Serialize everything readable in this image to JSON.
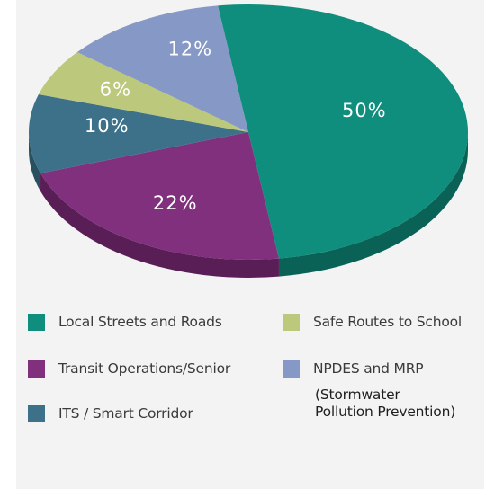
{
  "chart_data": {
    "type": "pie",
    "title": "",
    "labels_format": "percent",
    "slices": [
      {
        "label": "Local Streets and Roads",
        "value": 50,
        "display": "50%",
        "color": "#0f8d7d",
        "side": "#0a6257"
      },
      {
        "label": "Transit Operations/Senior",
        "value": 22,
        "display": "22%",
        "color": "#80307c",
        "side": "#5a1e57"
      },
      {
        "label": "ITS / Smart Corridor",
        "value": 10,
        "display": "10%",
        "color": "#3c7189",
        "side": "#29505f"
      },
      {
        "label": "Safe Routes to School",
        "value": 6,
        "display": "6%",
        "color": "#bcc87c",
        "side": "#8b9459"
      },
      {
        "label": "NPDES and MRP",
        "value": 12,
        "display": "12%",
        "color": "#8598c6",
        "side": "#5f6d92"
      }
    ],
    "legend_position": "bottom",
    "legend": {
      "left": [
        {
          "label": "Local Streets and Roads",
          "color": "#0f8d7d"
        },
        {
          "label": "Transit Operations/Senior",
          "color": "#80307c"
        },
        {
          "label": "ITS / Smart Corridor",
          "color": "#3c7189"
        }
      ],
      "right": [
        {
          "label": "Safe Routes to School",
          "color": "#bcc87c"
        },
        {
          "label": "NPDES and MRP",
          "color": "#8598c6",
          "note": [
            "(Stormwater",
            "Pollution Prevention)"
          ]
        }
      ]
    }
  }
}
